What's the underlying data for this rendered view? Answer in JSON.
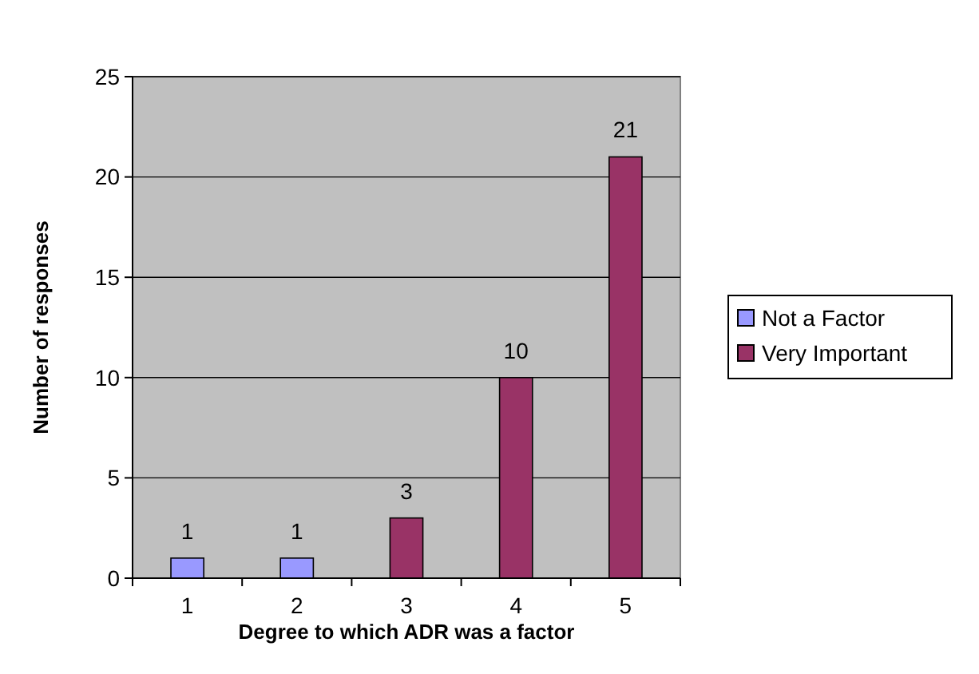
{
  "chart_data": {
    "type": "bar",
    "xlabel": "Degree to which ADR was a factor",
    "ylabel": "Number of responses",
    "categories": [
      "1",
      "2",
      "3",
      "4",
      "5"
    ],
    "series": [
      {
        "name": "Not a Factor",
        "color": "#9999ff",
        "values": [
          1,
          1,
          null,
          null,
          null
        ]
      },
      {
        "name": "Very Important",
        "color": "#993366",
        "values": [
          null,
          null,
          3,
          10,
          21
        ]
      }
    ],
    "ylim": [
      0,
      25
    ],
    "yticks": [
      0,
      5,
      10,
      15,
      20,
      25
    ],
    "grid": "y",
    "legend": "right",
    "data_labels": true
  }
}
